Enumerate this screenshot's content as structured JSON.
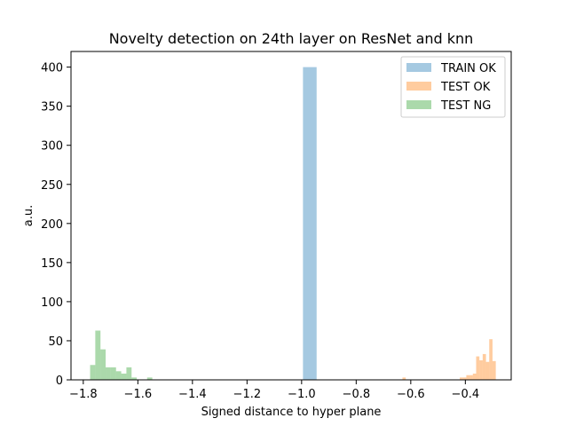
{
  "chart_data": {
    "type": "histogram",
    "title": "Novelty detection on 24th layer on ResNet and knn",
    "xlabel": "Signed distance to hyper plane",
    "ylabel": "a.u.",
    "xlim": [
      -1.845,
      -0.232
    ],
    "ylim": [
      0,
      420
    ],
    "xticks": [
      -1.8,
      -1.6,
      -1.4,
      -1.2,
      -1.0,
      -0.8,
      -0.6,
      -0.4
    ],
    "xtick_labels": [
      "−1.8",
      "−1.6",
      "−1.4",
      "−1.2",
      "−1.0",
      "−0.8",
      "−0.6",
      "−0.4"
    ],
    "yticks": [
      0,
      50,
      100,
      150,
      200,
      250,
      300,
      350,
      400
    ],
    "ytick_labels": [
      "0",
      "50",
      "100",
      "150",
      "200",
      "250",
      "300",
      "350",
      "400"
    ],
    "legend_position": "top-right",
    "alpha": 0.4,
    "series": [
      {
        "name": "TRAIN OK",
        "color": "#1f77b4",
        "bins": [
          {
            "x0": -0.995,
            "x1": -0.945,
            "value": 400
          }
        ]
      },
      {
        "name": "TEST OK",
        "color": "#ff7f0e",
        "bins": [
          {
            "x0": -0.6305,
            "x1": -0.6185,
            "value": 3
          },
          {
            "x0": -0.4205,
            "x1": -0.4085,
            "value": 3
          },
          {
            "x0": -0.4085,
            "x1": -0.3965,
            "value": 3
          },
          {
            "x0": -0.3965,
            "x1": -0.3845,
            "value": 6
          },
          {
            "x0": -0.3845,
            "x1": -0.3725,
            "value": 6
          },
          {
            "x0": -0.3725,
            "x1": -0.3605,
            "value": 8
          },
          {
            "x0": -0.3605,
            "x1": -0.3485,
            "value": 30
          },
          {
            "x0": -0.3485,
            "x1": -0.3365,
            "value": 25
          },
          {
            "x0": -0.3365,
            "x1": -0.3245,
            "value": 33
          },
          {
            "x0": -0.3245,
            "x1": -0.3125,
            "value": 23
          },
          {
            "x0": -0.3125,
            "x1": -0.3005,
            "value": 52
          },
          {
            "x0": -0.3005,
            "x1": -0.2885,
            "value": 24
          }
        ]
      },
      {
        "name": "TEST NG",
        "color": "#2ca02c",
        "bins": [
          {
            "x0": -1.775,
            "x1": -1.756,
            "value": 19
          },
          {
            "x0": -1.756,
            "x1": -1.737,
            "value": 63
          },
          {
            "x0": -1.737,
            "x1": -1.718,
            "value": 39
          },
          {
            "x0": -1.718,
            "x1": -1.699,
            "value": 16
          },
          {
            "x0": -1.699,
            "x1": -1.68,
            "value": 16
          },
          {
            "x0": -1.68,
            "x1": -1.661,
            "value": 11
          },
          {
            "x0": -1.661,
            "x1": -1.642,
            "value": 8
          },
          {
            "x0": -1.642,
            "x1": -1.623,
            "value": 16
          },
          {
            "x0": -1.623,
            "x1": -1.604,
            "value": 3
          },
          {
            "x0": -1.566,
            "x1": -1.547,
            "value": 3
          }
        ]
      }
    ]
  }
}
